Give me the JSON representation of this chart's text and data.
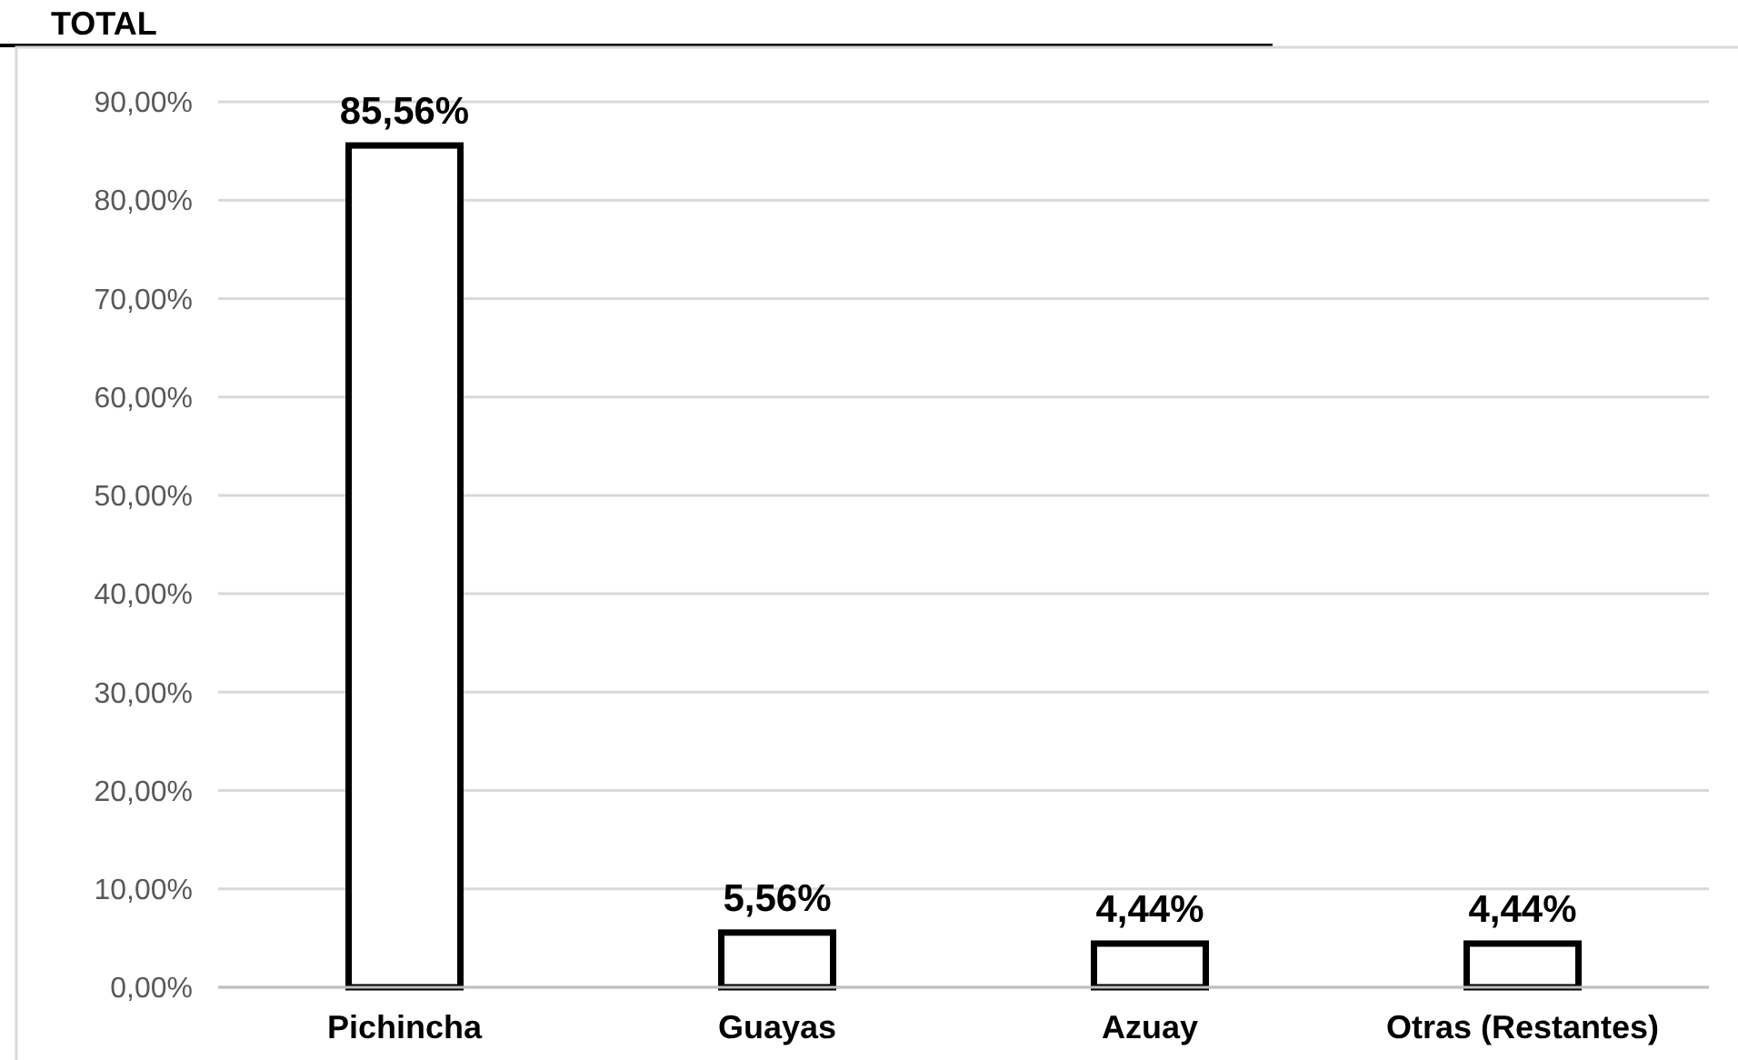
{
  "chart_data": {
    "type": "bar",
    "title": "TOTAL",
    "categories": [
      "Pichincha",
      "Guayas",
      "Azuay",
      "Otras (Restantes)"
    ],
    "values": [
      85.56,
      5.56,
      4.44,
      4.44
    ],
    "color": "#ffffff",
    "value_labels": [
      "85,56%",
      "5,56%",
      "4,44%",
      "4,44%"
    ],
    "ylim": [
      0,
      90
    ],
    "yticks": [
      {
        "value": 0,
        "label": "0,00%"
      },
      {
        "value": 10,
        "label": "10,00%"
      },
      {
        "value": 20,
        "label": "20,00%"
      },
      {
        "value": 30,
        "label": "30,00%"
      },
      {
        "value": 40,
        "label": "40,00%"
      },
      {
        "value": 50,
        "label": "50,00%"
      },
      {
        "value": 60,
        "label": "60,00%"
      },
      {
        "value": 70,
        "label": "70,00%"
      },
      {
        "value": 80,
        "label": "80,00%"
      },
      {
        "value": 90,
        "label": "90,00%"
      }
    ],
    "grid": "y"
  }
}
